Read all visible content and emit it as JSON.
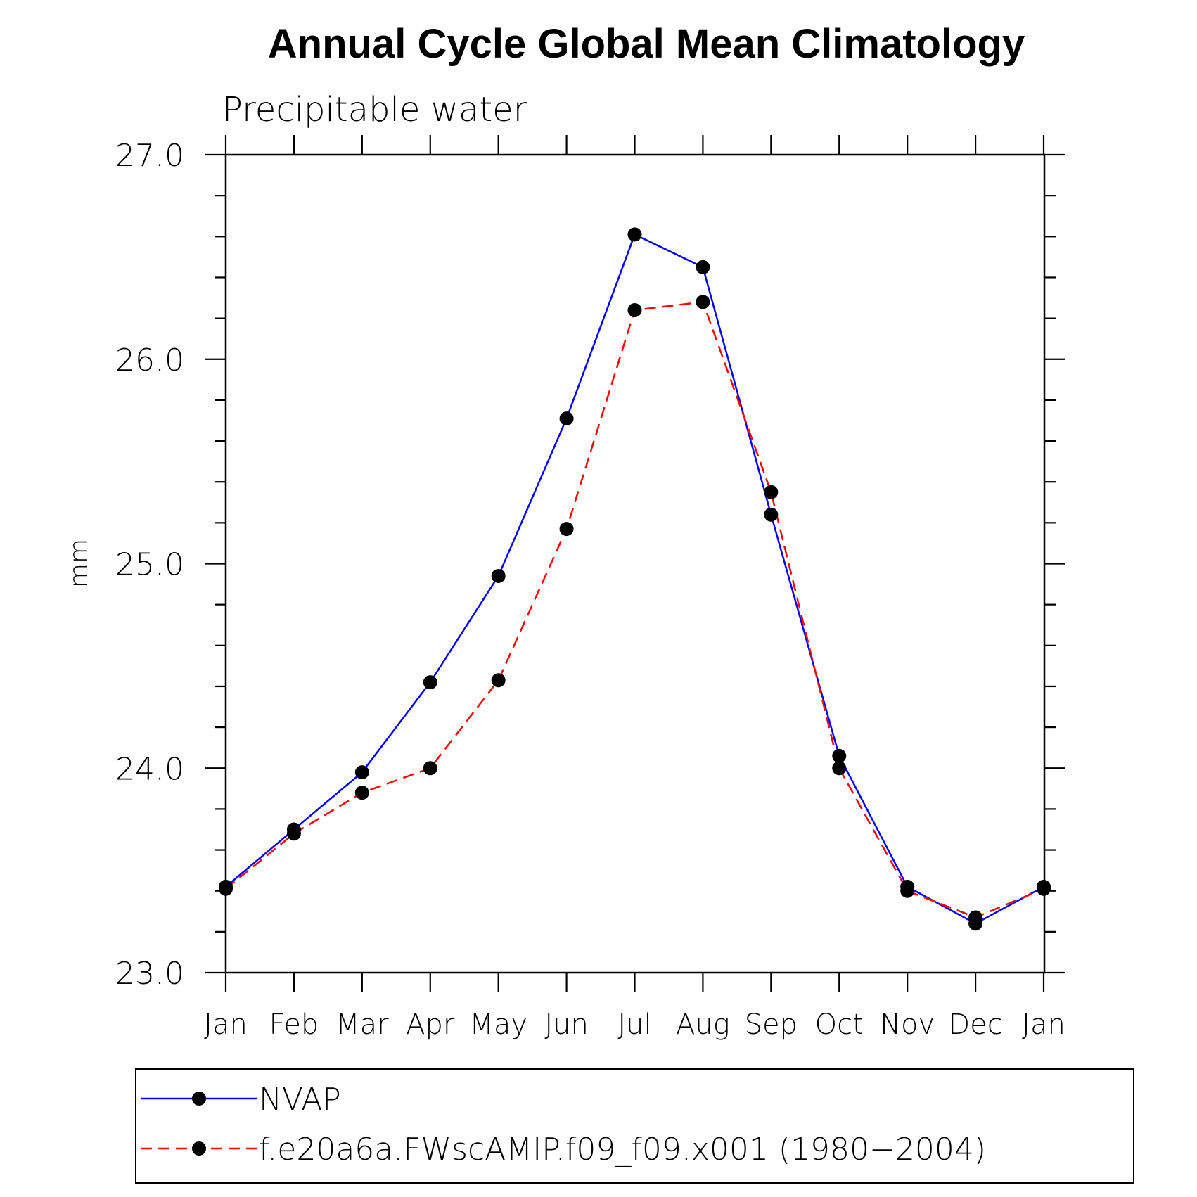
{
  "chart_data": {
    "type": "line",
    "title": "Annual Cycle Global Mean Climatology",
    "subtitle": "Precipitable water",
    "xlabel": "",
    "ylabel": "mm",
    "categories": [
      "Jan",
      "Feb",
      "Mar",
      "Apr",
      "May",
      "Jun",
      "Jul",
      "Aug",
      "Sep",
      "Oct",
      "Nov",
      "Dec",
      "Jan"
    ],
    "ylim": [
      23.0,
      27.0
    ],
    "yticks": [
      "23.0",
      "24.0",
      "25.0",
      "26.0",
      "27.0"
    ],
    "grid": false,
    "legend_position": "bottom",
    "series": [
      {
        "name": "NVAP",
        "color": "#0000ff",
        "style": "solid",
        "marker": "filled-circle",
        "values": [
          23.42,
          23.7,
          23.98,
          24.42,
          24.94,
          25.71,
          26.61,
          26.45,
          25.24,
          24.06,
          23.42,
          23.24,
          23.42
        ]
      },
      {
        "name": "f.e20a6a.FWscAMIP.f09_f09.x001 (1980−2004)",
        "color": "#ff0000",
        "style": "dashed",
        "marker": "filled-circle",
        "values": [
          23.41,
          23.68,
          23.88,
          24.0,
          24.43,
          25.17,
          26.24,
          26.28,
          25.35,
          24.0,
          23.4,
          23.27,
          23.41
        ]
      }
    ]
  }
}
